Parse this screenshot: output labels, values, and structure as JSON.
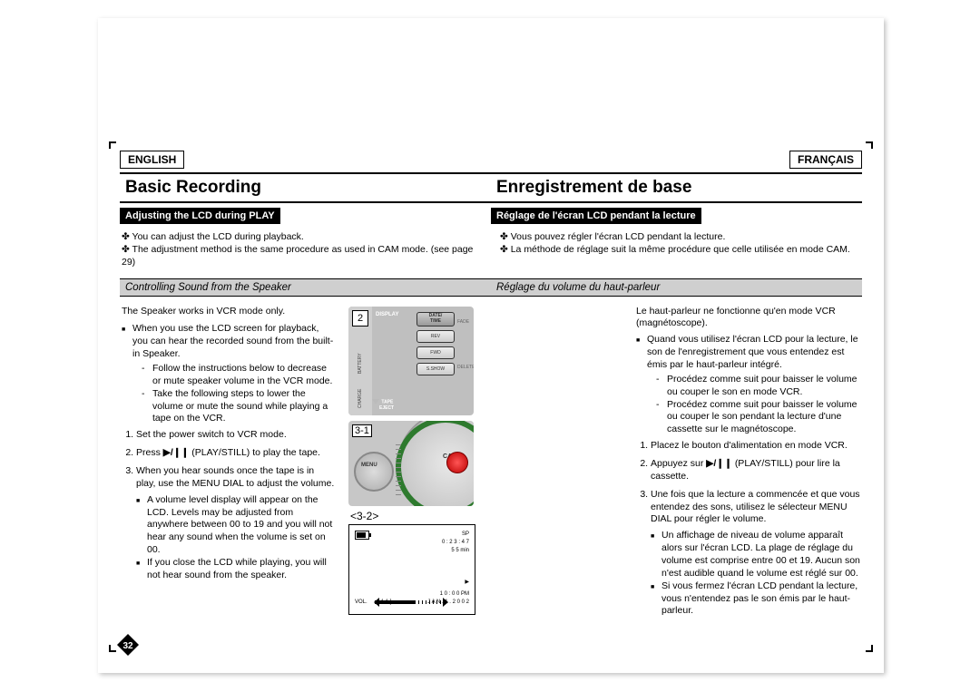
{
  "langs": {
    "left": "ENGLISH",
    "right": "FRANÇAIS"
  },
  "titles": {
    "left": "Basic Recording",
    "right": "Enregistrement de base"
  },
  "bars": {
    "left": "Adjusting the LCD during PLAY",
    "right": "Réglage de l'écran LCD pendant la lecture"
  },
  "intro_left": [
    "You can adjust the LCD during playback.",
    "The adjustment method is the same procedure as used in CAM mode. (see page 29)"
  ],
  "intro_right": [
    "Vous pouvez régler l'écran LCD pendant la lecture.",
    "La méthode de réglage suit la même procédure que celle utilisée en mode CAM."
  ],
  "subs": {
    "left": "Controlling Sound from the Speaker",
    "right": "Réglage du volume du haut-parleur"
  },
  "left_body": {
    "line1": "The Speaker works in VCR mode only.",
    "sq1": "When you use the LCD screen for playback, you can hear the recorded sound from the built-in Speaker.",
    "dash1": "Follow the instructions below to decrease or mute speaker volume in the VCR mode.",
    "dash2": "Take the following steps to lower the volume or mute the sound while playing a tape on the VCR.",
    "ol1": "Set the power switch to VCR mode.",
    "ol2_a": "Press ",
    "ol2_b": " (PLAY/STILL) to play the tape.",
    "ol3": "When you hear sounds once the tape is in play, use the MENU DIAL to adjust the volume.",
    "sq2": "A volume level display will appear on the LCD. Levels may be adjusted from anywhere between 00 to 19 and you will not hear any sound when the volume is set on 00.",
    "sq3": "If you close the LCD while playing, you will not hear sound from the speaker."
  },
  "right_body": {
    "line1": "Le haut-parleur ne fonctionne qu'en mode VCR (magnétoscope).",
    "sq1": "Quand vous utilisez l'écran LCD pour la lecture, le son de l'enregistrement que vous entendez est émis par le haut-parleur intégré.",
    "dash1": "Procédez comme suit pour baisser le volume ou couper le son en mode VCR.",
    "dash2": "Procédez comme suit pour baisser le volume ou couper le son pendant la lecture d'une cassette sur le magnétoscope.",
    "ol1": "Placez le bouton d'alimentation en mode VCR.",
    "ol2_a": "Appuyez sur ",
    "ol2_b": " (PLAY/STILL) pour lire la cassette.",
    "ol3": "Une fois que la lecture a commencée et que vous entendez des sons, utilisez le sélecteur MENU DIAL pour régler le volume.",
    "sq2": "Un affichage de niveau de volume apparaît alors sur l'écran LCD. La plage de réglage du volume est comprise entre 00 et 19. Aucun son n'est audible quand le volume est réglé sur 00.",
    "sq3": "Si vous fermez l'écran LCD pendant la lecture, vous n'entendez pas le son émis par le haut-parleur."
  },
  "figs": {
    "box2": "2",
    "box31": "3-1",
    "label32": "<3-2>",
    "display": "DISPLAY",
    "battery": "BATTERY",
    "charge": "CHARGE",
    "eject1": "TAPE",
    "eject2": "EJECT",
    "btns": [
      "REV",
      "FWD",
      "S.SHOW"
    ],
    "btn_sel": "DATE/\nTIME",
    "side": [
      "FADE",
      "DELETE"
    ],
    "menu": "MENU",
    "cam": "CAM",
    "lcd": {
      "sp": "SP",
      "time": "0 : 2 3 : 4 7",
      "remain": "5 5 min",
      "play": "▶",
      "vol_label": "VOL.",
      "vol_val": "[ 1 1 ]",
      "vol_fill_pct": 55,
      "clock": "1 0 : 0 0  PM",
      "date": "J A N . 1 . 2 0 0 2"
    }
  },
  "page_number": "32",
  "colors": {
    "fold": "#000000",
    "grey_bar": "#cfcfcf"
  }
}
